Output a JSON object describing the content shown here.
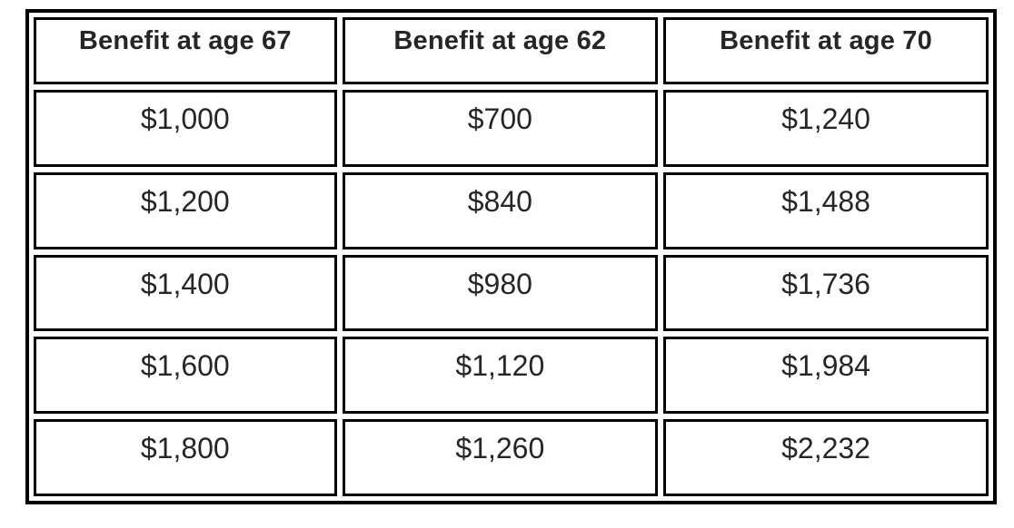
{
  "table": {
    "columns": [
      "Benefit at age 67",
      "Benefit at age 62",
      "Benefit at age 70"
    ],
    "rows": [
      [
        "$1,000",
        "$700",
        "$1,240"
      ],
      [
        "$1,200",
        "$840",
        "$1,488"
      ],
      [
        "$1,400",
        "$980",
        "$1,736"
      ],
      [
        "$1,600",
        "$1,120",
        "$1,984"
      ],
      [
        "$1,800",
        "$1,260",
        "$2,232"
      ]
    ]
  },
  "colors": {
    "border": "#000000",
    "text": "#262626",
    "background": "#ffffff"
  }
}
